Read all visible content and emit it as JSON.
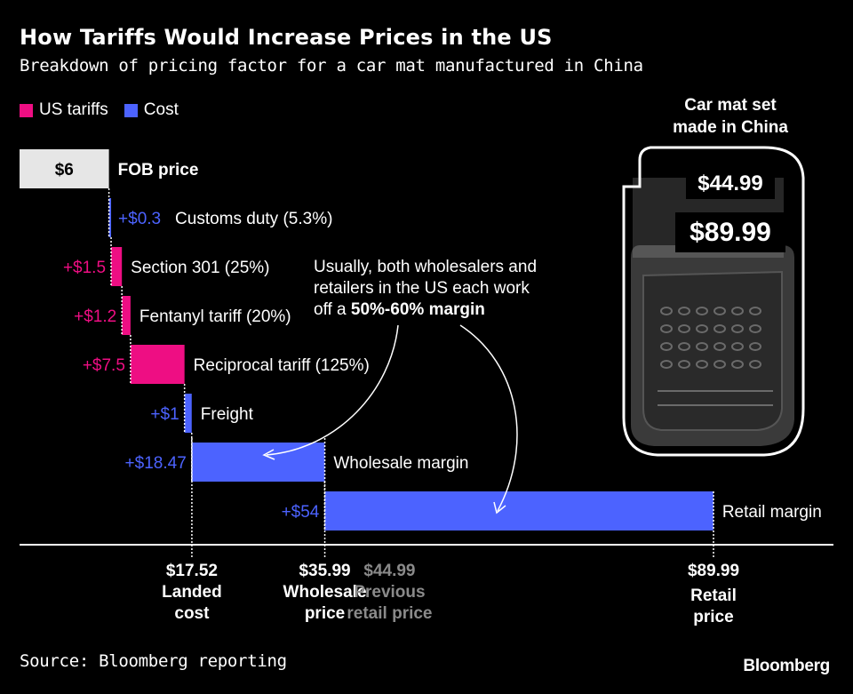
{
  "header": {
    "title": "How Tariffs Would Increase Prices in the US",
    "subtitle": "Breakdown of pricing factor for a car mat manufactured in China"
  },
  "colors": {
    "tariff": "#ee0e83",
    "cost": "#4c63ff",
    "base": "#e6e6e6",
    "muted": "#8a8a8a"
  },
  "legend": [
    {
      "label": "US tariffs",
      "color": "#ee0e83"
    },
    {
      "label": "Cost",
      "color": "#4c63ff"
    }
  ],
  "chart_data": {
    "type": "waterfall",
    "steps": [
      {
        "name": "FOB price",
        "value": 6,
        "label": "$6",
        "kind": "base"
      },
      {
        "name": "Customs duty (5.3%)",
        "value": 0.3,
        "label": "+$0.3",
        "kind": "cost"
      },
      {
        "name": "Section 301 (25%)",
        "value": 1.5,
        "label": "+$1.5",
        "kind": "tariff"
      },
      {
        "name": "Fentanyl tariff (20%)",
        "value": 1.2,
        "label": "+$1.2",
        "kind": "tariff"
      },
      {
        "name": "Reciprocal tariff (125%)",
        "value": 7.5,
        "label": "+$7.5",
        "kind": "tariff"
      },
      {
        "name": "Freight",
        "value": 1,
        "label": "+$1",
        "kind": "cost"
      },
      {
        "name": "Wholesale margin",
        "value": 18.47,
        "label": "+$18.47",
        "kind": "cost"
      },
      {
        "name": "Retail margin",
        "value": 54,
        "label": "+$54",
        "kind": "cost"
      }
    ],
    "markers": [
      {
        "x": 17.52,
        "value_label": "$17.52",
        "caption": [
          "Landed",
          "cost"
        ],
        "muted": false
      },
      {
        "x": 35.99,
        "value_label": "$35.99",
        "caption": [
          "Wholesale",
          "price"
        ],
        "muted": false
      },
      {
        "x": 44.99,
        "value_label": "$44.99",
        "caption": [
          "Previous",
          "retail price"
        ],
        "muted": true
      },
      {
        "x": 89.99,
        "value_label": "$89.99",
        "caption": [
          "Retail",
          "price"
        ],
        "muted": false
      }
    ],
    "annotation": {
      "lines": [
        "Usually, both wholesalers and",
        "retailers in the US each work"
      ],
      "last_prefix": "off a ",
      "last_bold": "50%-60% margin"
    },
    "xlim": [
      0,
      89.99
    ]
  },
  "product": {
    "title_line1": "Car mat set",
    "title_line2": "made in China",
    "previous_price": "$44.99",
    "new_price": "$89.99"
  },
  "footer": {
    "source": "Source: Bloomberg reporting",
    "brand": "Bloomberg"
  }
}
